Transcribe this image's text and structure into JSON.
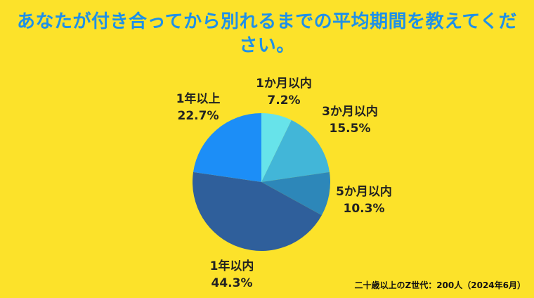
{
  "title": "あなたが付き合ってから別れるまでの平均期間を教えてください。",
  "note": "二十歳以上のZ世代：200人（2024年6月）",
  "chart_data": {
    "type": "pie",
    "title": "あなたが付き合ってから別れるまでの平均期間を教えてください。",
    "unit": "%",
    "slices": [
      {
        "label": "1か月以内",
        "value": 7.2,
        "display": "7.2%",
        "color": "#67E3EA"
      },
      {
        "label": "3か月以内",
        "value": 15.5,
        "display": "15.5%",
        "color": "#42B6D8"
      },
      {
        "label": "5か月以内",
        "value": 10.3,
        "display": "10.3%",
        "color": "#2D87B9"
      },
      {
        "label": "1年以内",
        "value": 44.3,
        "display": "44.3%",
        "color": "#2F5F9B"
      },
      {
        "label": "1年以上",
        "value": 22.7,
        "display": "22.7%",
        "color": "#1C8EF7"
      }
    ]
  }
}
